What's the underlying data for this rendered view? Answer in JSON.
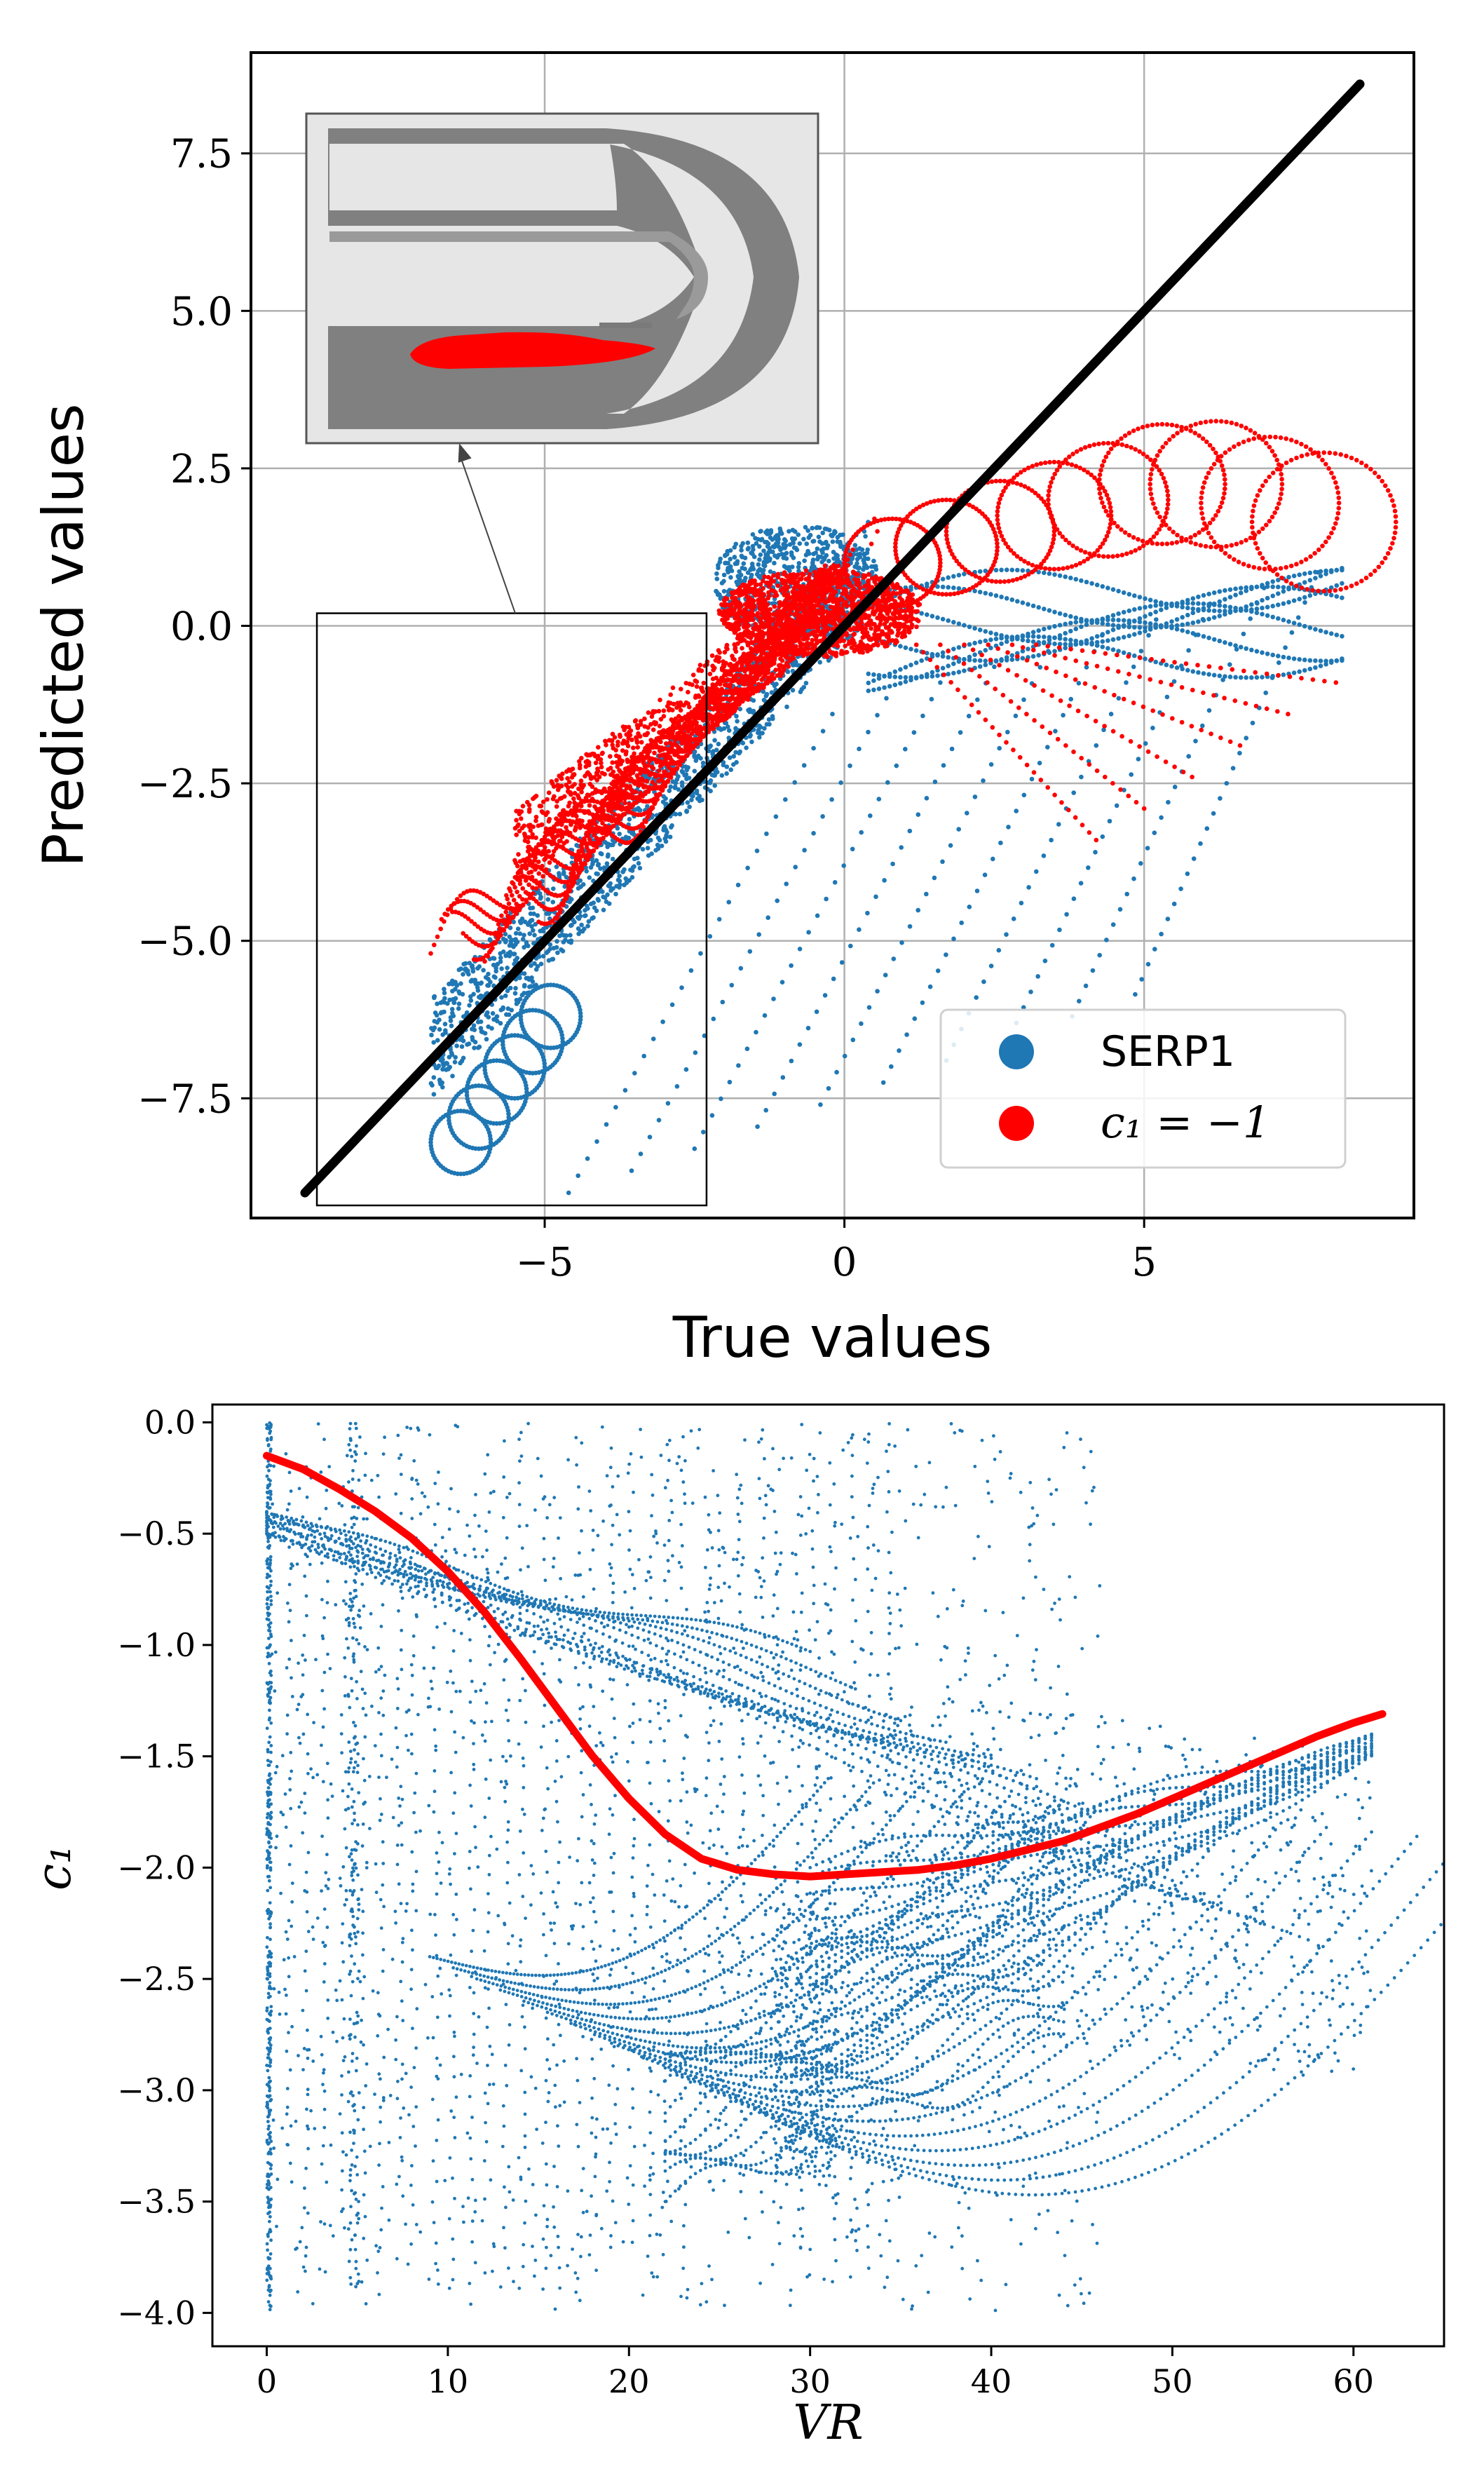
{
  "colors": {
    "serp1": "#1f77b4",
    "c1_minus_one": "#ff0000",
    "identity_line": "#000000",
    "grid": "#b0b0b0",
    "inset_background": "#e6e6e6",
    "inset_geometry": "#808080",
    "inset_highlight": "#ff0000"
  },
  "chart_data": [
    {
      "id": "top",
      "type": "scatter",
      "title": "",
      "xlabel": "True values",
      "ylabel": "Predicted values",
      "xlim": [
        -9.9,
        9.5
      ],
      "ylim": [
        -9.4,
        9.1
      ],
      "grid": true,
      "xticks": [
        -5,
        0,
        5
      ],
      "xtick_labels": [
        "−5",
        "0",
        "5"
      ],
      "yticks": [
        -7.5,
        -5.0,
        -2.5,
        0.0,
        2.5,
        5.0,
        7.5
      ],
      "ytick_labels": [
        "−7.5",
        "−5.0",
        "−2.5",
        "0.0",
        "2.5",
        "5.0",
        "7.5"
      ],
      "legend_placement": "lower-right",
      "series": [
        {
          "name": "SERP1",
          "color": "#1f77b4",
          "sample_points": [
            [
              -6.9,
              -9.0
            ],
            [
              -6.7,
              -8.5
            ],
            [
              -6.5,
              -8.0
            ],
            [
              -6.2,
              -7.3
            ],
            [
              -6.0,
              -6.6
            ],
            [
              -5.6,
              -6.0
            ],
            [
              -5.2,
              -5.3
            ],
            [
              -4.8,
              -4.5
            ],
            [
              -4.4,
              -3.8
            ],
            [
              -4.0,
              -3.2
            ],
            [
              -3.6,
              -2.6
            ],
            [
              -3.2,
              -2.2
            ],
            [
              -2.8,
              -1.8
            ],
            [
              -2.4,
              -1.4
            ],
            [
              -2.0,
              -1.0
            ],
            [
              -1.6,
              -0.6
            ],
            [
              -1.2,
              -0.3
            ],
            [
              -0.8,
              0.0
            ],
            [
              -0.4,
              0.4
            ],
            [
              0.0,
              0.7
            ],
            [
              0.4,
              0.9
            ],
            [
              -3.0,
              -6.5
            ],
            [
              -2.0,
              -5.5
            ],
            [
              -1.0,
              -4.5
            ],
            [
              0.0,
              -3.5
            ],
            [
              1.0,
              -2.8
            ],
            [
              2.0,
              -2.0
            ],
            [
              3.0,
              -1.5
            ],
            [
              4.0,
              -1.0
            ],
            [
              5.0,
              -0.5
            ],
            [
              6.0,
              -0.2
            ],
            [
              7.0,
              0.3
            ],
            [
              8.0,
              0.6
            ],
            [
              -4.0,
              -8.9
            ],
            [
              -3.2,
              -8.0
            ],
            [
              -2.2,
              -7.0
            ],
            [
              -1.0,
              -6.0
            ],
            [
              1.5,
              -6.0
            ],
            [
              3.0,
              -4.5
            ],
            [
              4.5,
              -3.0
            ],
            [
              6.5,
              -1.0
            ],
            [
              8.3,
              0.7
            ]
          ]
        },
        {
          "name": "c_1 = −1",
          "legend_label": "c₁ = −1",
          "color": "#ff0000",
          "sample_points": [
            [
              -6.8,
              -5.3
            ],
            [
              -6.3,
              -5.0
            ],
            [
              -5.8,
              -4.7
            ],
            [
              -5.2,
              -4.2
            ],
            [
              -4.7,
              -3.7
            ],
            [
              -4.2,
              -3.0
            ],
            [
              -3.7,
              -2.5
            ],
            [
              -3.2,
              -2.0
            ],
            [
              -2.7,
              -1.5
            ],
            [
              -2.2,
              -1.0
            ],
            [
              -1.7,
              -0.6
            ],
            [
              -1.2,
              -0.3
            ],
            [
              -0.7,
              0.0
            ],
            [
              -5.6,
              -2.8
            ],
            [
              -5.0,
              -2.0
            ],
            [
              -4.4,
              -1.4
            ],
            [
              -3.8,
              -0.8
            ],
            [
              -3.2,
              -0.4
            ],
            [
              -2.6,
              -0.2
            ],
            [
              -2.0,
              0.5
            ],
            [
              -1.5,
              1.0
            ],
            [
              -1.0,
              1.1
            ],
            [
              -0.5,
              0.7
            ],
            [
              0.5,
              0.4
            ],
            [
              1.0,
              0.6
            ],
            [
              2.0,
              1.0
            ],
            [
              3.0,
              1.8
            ],
            [
              4.0,
              2.4
            ],
            [
              5.0,
              2.5
            ],
            [
              6.0,
              1.8
            ],
            [
              7.0,
              1.6
            ],
            [
              8.0,
              1.6
            ],
            [
              8.4,
              0.8
            ],
            [
              2.0,
              -1.0
            ],
            [
              3.0,
              -1.8
            ],
            [
              4.0,
              -2.6
            ],
            [
              5.0,
              -3.3
            ],
            [
              6.0,
              -2.3
            ],
            [
              7.0,
              -1.3
            ],
            [
              8.0,
              -0.3
            ],
            [
              0.5,
              1.7
            ]
          ]
        },
        {
          "name": "identity",
          "color": "#000000",
          "x": [
            -9.0,
            8.6
          ],
          "y": [
            -9.0,
            8.6
          ]
        }
      ],
      "annotations": {
        "zoom_box": {
          "x_range": [
            -8.8,
            -2.3
          ],
          "y_range": [
            -9.2,
            0.2
          ]
        },
        "inset": "zoomed map of the predicted geometry with the c₁ = −1 region highlighted"
      }
    },
    {
      "id": "bottom",
      "type": "scatter",
      "title": "",
      "xlabel": "VR",
      "ylabel": "c₁",
      "xlim": [
        -3.0,
        65.0
      ],
      "ylim": [
        -4.15,
        0.08
      ],
      "grid": false,
      "xticks": [
        0,
        10,
        20,
        30,
        40,
        50,
        60
      ],
      "xtick_labels": [
        "0",
        "10",
        "20",
        "30",
        "40",
        "50",
        "60"
      ],
      "yticks": [
        0.0,
        -0.5,
        -1.0,
        -1.5,
        -2.0,
        -2.5,
        -3.0,
        -3.5,
        -4.0
      ],
      "ytick_labels": [
        "0.0",
        "−0.5",
        "−1.0",
        "−1.5",
        "−2.0",
        "−2.5",
        "−3.0",
        "−3.5",
        "−4.0"
      ],
      "series": [
        {
          "name": "fit",
          "color": "#ff0000",
          "x": [
            0,
            2,
            4,
            6,
            8,
            10,
            12,
            14,
            16,
            18,
            20,
            22,
            24,
            26,
            28,
            30,
            32,
            34,
            36,
            38,
            40,
            42,
            44,
            46,
            48,
            50,
            52,
            54,
            56,
            58,
            60,
            61.6
          ],
          "y": [
            -0.15,
            -0.21,
            -0.3,
            -0.4,
            -0.52,
            -0.67,
            -0.85,
            -1.06,
            -1.28,
            -1.5,
            -1.69,
            -1.85,
            -1.96,
            -2.01,
            -2.03,
            -2.04,
            -2.03,
            -2.02,
            -2.01,
            -1.99,
            -1.96,
            -1.92,
            -1.88,
            -1.82,
            -1.76,
            -1.69,
            -1.62,
            -1.55,
            -1.48,
            -1.41,
            -1.35,
            -1.31
          ]
        },
        {
          "name": "data",
          "color": "#1f77b4",
          "sample_points": [
            [
              0,
              -4.0
            ],
            [
              0,
              -3.5
            ],
            [
              0,
              -3.0
            ],
            [
              0,
              -2.5
            ],
            [
              0,
              -2.0
            ],
            [
              0,
              -1.5
            ],
            [
              0,
              -1.0
            ],
            [
              0,
              -0.5
            ],
            [
              0,
              0.0
            ],
            [
              2,
              -0.4
            ],
            [
              4,
              -0.45
            ],
            [
              6,
              -0.5
            ],
            [
              8,
              -0.55
            ],
            [
              10,
              -0.5
            ],
            [
              12,
              -0.55
            ],
            [
              14,
              -0.6
            ],
            [
              16,
              -0.7
            ],
            [
              18,
              -0.75
            ],
            [
              20,
              -0.8
            ],
            [
              22,
              -0.9
            ],
            [
              24,
              -1.0
            ],
            [
              26,
              -1.05
            ],
            [
              28,
              -1.1
            ],
            [
              30,
              -1.15
            ],
            [
              9,
              -2.35
            ],
            [
              12,
              -2.6
            ],
            [
              15,
              -2.75
            ],
            [
              18,
              -2.75
            ],
            [
              21,
              -2.6
            ],
            [
              24,
              -2.5
            ],
            [
              27,
              -2.4
            ],
            [
              30,
              -2.2
            ],
            [
              33,
              -2.4
            ],
            [
              36,
              -2.3
            ],
            [
              40,
              -2.4
            ],
            [
              44,
              -2.5
            ],
            [
              48,
              -2.3
            ],
            [
              52,
              -1.9
            ],
            [
              56,
              -1.7
            ],
            [
              60,
              -1.4
            ],
            [
              5,
              -3.9
            ],
            [
              10,
              -3.7
            ],
            [
              15,
              -3.5
            ],
            [
              20,
              -3.3
            ],
            [
              25,
              -3.5
            ],
            [
              28,
              -3.6
            ],
            [
              32,
              -3.3
            ],
            [
              36,
              -3.2
            ],
            [
              40,
              -2.8
            ],
            [
              44,
              -2.7
            ],
            [
              48,
              -2.6
            ],
            [
              34,
              -0.2
            ],
            [
              33,
              -0.6
            ],
            [
              32,
              -1.0
            ],
            [
              20,
              0.0
            ],
            [
              25,
              -0.3
            ],
            [
              30,
              -0.5
            ]
          ]
        }
      ]
    }
  ]
}
